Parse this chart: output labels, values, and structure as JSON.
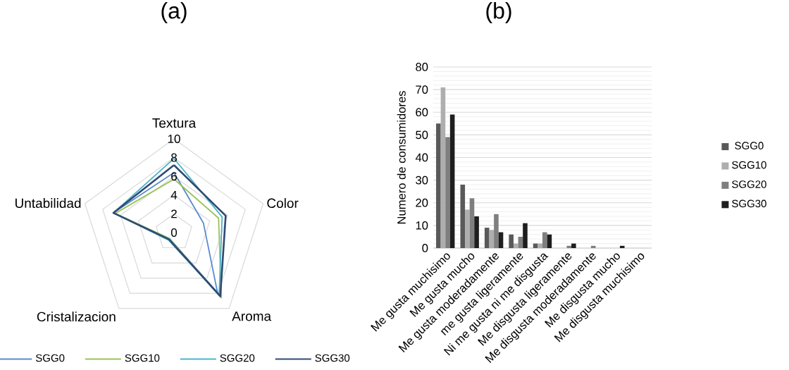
{
  "chart_data": [
    {
      "type": "radar",
      "title": "(a)",
      "categories": [
        "Textura",
        "Color",
        "Aroma",
        "Cristalizacion",
        "Untabilidad"
      ],
      "ylim": [
        0,
        10
      ],
      "yticks": [
        0,
        2,
        4,
        6,
        8,
        10
      ],
      "grid": true,
      "legend": "bottom",
      "marker": "none",
      "series": [
        {
          "name": "SGG0",
          "color": "#5b8bd0",
          "values": [
            6.4,
            3.3,
            7.9,
            0.8,
            6.8
          ]
        },
        {
          "name": "SGG10",
          "color": "#9bc25a",
          "values": [
            5.7,
            5.0,
            8.6,
            0.8,
            6.6
          ]
        },
        {
          "name": "SGG20",
          "color": "#4bb3c9",
          "values": [
            7.9,
            5.4,
            8.2,
            1.0,
            6.8
          ]
        },
        {
          "name": "SGG30",
          "color": "#2f4a73",
          "values": [
            7.2,
            5.8,
            8.4,
            0.9,
            6.8
          ]
        }
      ]
    },
    {
      "type": "bar",
      "title": "(b)",
      "ylabel": "Numero de consumidores",
      "categories": [
        "Me gusta muchisimo",
        "Me gusta mucho",
        "Me gusta moderadamente",
        "me gusta ligeramente",
        "Ni me gusta ni me disgusta",
        "Me disgusta ligeramente",
        "Me disgusta moderadamente",
        "Me disgusta mucho",
        "Me disgusta muchisimo"
      ],
      "ylim": [
        0,
        80
      ],
      "yticks": [
        0,
        10,
        20,
        30,
        40,
        50,
        60,
        70,
        80
      ],
      "grid": "y",
      "legend": "right",
      "series": [
        {
          "name": "SGG0",
          "color": "#595959",
          "values": [
            55,
            28,
            9,
            6,
            2,
            0,
            0,
            0,
            0
          ]
        },
        {
          "name": "SGG10",
          "color": "#aeaeae",
          "values": [
            71,
            17,
            8,
            2,
            2,
            0,
            0,
            0,
            0
          ]
        },
        {
          "name": "SGG20",
          "color": "#7f7f7f",
          "values": [
            49,
            22,
            15,
            5,
            7,
            1,
            1,
            0,
            0
          ]
        },
        {
          "name": "SGG30",
          "color": "#1e1e1e",
          "values": [
            59,
            14,
            7,
            11,
            6,
            2,
            0,
            1,
            0
          ]
        }
      ]
    }
  ]
}
